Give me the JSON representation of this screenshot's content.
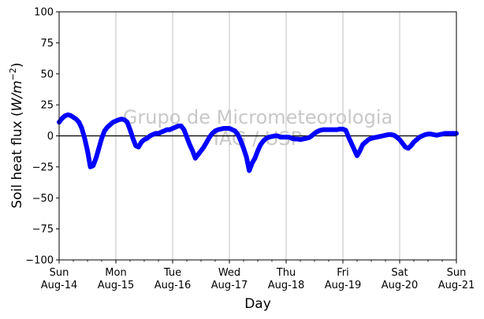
{
  "chart_data": {
    "type": "line",
    "xlabel": "Day",
    "ylabel": "Soil heat flux (W/m⁻²)",
    "ylabel_parts": [
      "Soil heat flux (",
      "W",
      "/",
      "m",
      "−2",
      ")"
    ],
    "xlim": [
      0,
      7
    ],
    "ylim": [
      -100,
      100
    ],
    "y_ticks": [
      100,
      75,
      50,
      25,
      0,
      -25,
      -50,
      -75,
      -100
    ],
    "x_ticks": [
      {
        "x": 0,
        "day": "Sun",
        "date": "Aug-14"
      },
      {
        "x": 1,
        "day": "Mon",
        "date": "Aug-15"
      },
      {
        "x": 2,
        "day": "Tue",
        "date": "Aug-16"
      },
      {
        "x": 3,
        "day": "Wed",
        "date": "Aug-17"
      },
      {
        "x": 4,
        "day": "Thu",
        "date": "Aug-18"
      },
      {
        "x": 5,
        "day": "Fri",
        "date": "Aug-19"
      },
      {
        "x": 6,
        "day": "Sat",
        "date": "Aug-20"
      },
      {
        "x": 7,
        "day": "Sun",
        "date": "Aug-21"
      }
    ],
    "grid": "vertical",
    "zero_line": true,
    "watermark": [
      "Grupo de Micrometeorologia",
      "IAG / USP"
    ],
    "series": [
      {
        "color": "#0000ff",
        "points": [
          [
            0.0,
            11
          ],
          [
            0.05,
            14
          ],
          [
            0.1,
            16
          ],
          [
            0.15,
            17
          ],
          [
            0.2,
            16.5
          ],
          [
            0.25,
            15
          ],
          [
            0.3,
            13.5
          ],
          [
            0.35,
            11
          ],
          [
            0.4,
            6
          ],
          [
            0.45,
            -2
          ],
          [
            0.5,
            -12
          ],
          [
            0.55,
            -25
          ],
          [
            0.6,
            -24
          ],
          [
            0.65,
            -18
          ],
          [
            0.7,
            -10
          ],
          [
            0.75,
            -2
          ],
          [
            0.8,
            4
          ],
          [
            0.85,
            7
          ],
          [
            0.9,
            9
          ],
          [
            0.95,
            11
          ],
          [
            1.0,
            12
          ],
          [
            1.05,
            13
          ],
          [
            1.1,
            13.5
          ],
          [
            1.15,
            13
          ],
          [
            1.2,
            11
          ],
          [
            1.25,
            5
          ],
          [
            1.3,
            -2
          ],
          [
            1.35,
            -8
          ],
          [
            1.4,
            -9
          ],
          [
            1.45,
            -5
          ],
          [
            1.5,
            -3
          ],
          [
            1.55,
            -2
          ],
          [
            1.6,
            0
          ],
          [
            1.65,
            1
          ],
          [
            1.7,
            2
          ],
          [
            1.75,
            2
          ],
          [
            1.8,
            3
          ],
          [
            1.85,
            4
          ],
          [
            1.9,
            5
          ],
          [
            1.95,
            5
          ],
          [
            2.0,
            6
          ],
          [
            2.05,
            7
          ],
          [
            2.1,
            8
          ],
          [
            2.15,
            8
          ],
          [
            2.2,
            5
          ],
          [
            2.25,
            -1
          ],
          [
            2.3,
            -7
          ],
          [
            2.35,
            -12
          ],
          [
            2.4,
            -18
          ],
          [
            2.45,
            -15
          ],
          [
            2.5,
            -12
          ],
          [
            2.55,
            -9
          ],
          [
            2.6,
            -5
          ],
          [
            2.65,
            -1
          ],
          [
            2.7,
            2
          ],
          [
            2.75,
            4
          ],
          [
            2.8,
            5
          ],
          [
            2.85,
            5.5
          ],
          [
            2.9,
            6
          ],
          [
            2.95,
            6
          ],
          [
            3.0,
            6
          ],
          [
            3.05,
            5
          ],
          [
            3.1,
            4
          ],
          [
            3.15,
            1
          ],
          [
            3.2,
            -4
          ],
          [
            3.25,
            -10
          ],
          [
            3.3,
            -17
          ],
          [
            3.35,
            -28
          ],
          [
            3.4,
            -22
          ],
          [
            3.45,
            -18
          ],
          [
            3.5,
            -12
          ],
          [
            3.55,
            -7
          ],
          [
            3.6,
            -4
          ],
          [
            3.65,
            -2
          ],
          [
            3.7,
            -1
          ],
          [
            3.75,
            -0.5
          ],
          [
            3.8,
            0
          ],
          [
            3.85,
            0
          ],
          [
            3.9,
            -1
          ],
          [
            3.95,
            -1
          ],
          [
            4.0,
            -1
          ],
          [
            4.05,
            -1
          ],
          [
            4.1,
            -2
          ],
          [
            4.15,
            -2.5
          ],
          [
            4.2,
            -2.5
          ],
          [
            4.25,
            -3
          ],
          [
            4.3,
            -2.5
          ],
          [
            4.35,
            -2
          ],
          [
            4.4,
            -1.5
          ],
          [
            4.45,
            0
          ],
          [
            4.5,
            2
          ],
          [
            4.55,
            3.5
          ],
          [
            4.6,
            4.5
          ],
          [
            4.65,
            5
          ],
          [
            4.7,
            5
          ],
          [
            4.75,
            5
          ],
          [
            4.8,
            5
          ],
          [
            4.85,
            5
          ],
          [
            4.9,
            5
          ],
          [
            4.95,
            5.5
          ],
          [
            5.0,
            5.5
          ],
          [
            5.05,
            4.5
          ],
          [
            5.1,
            -1
          ],
          [
            5.15,
            -6
          ],
          [
            5.2,
            -11
          ],
          [
            5.25,
            -16
          ],
          [
            5.3,
            -12
          ],
          [
            5.35,
            -7
          ],
          [
            5.4,
            -5
          ],
          [
            5.45,
            -3
          ],
          [
            5.5,
            -2
          ],
          [
            5.55,
            -1.5
          ],
          [
            5.6,
            -1
          ],
          [
            5.65,
            -0.5
          ],
          [
            5.7,
            0
          ],
          [
            5.75,
            0.5
          ],
          [
            5.8,
            1
          ],
          [
            5.85,
            1
          ],
          [
            5.9,
            0.5
          ],
          [
            5.95,
            -1
          ],
          [
            6.0,
            -3
          ],
          [
            6.05,
            -6
          ],
          [
            6.1,
            -9
          ],
          [
            6.15,
            -10
          ],
          [
            6.2,
            -8
          ],
          [
            6.25,
            -5
          ],
          [
            6.3,
            -3
          ],
          [
            6.35,
            -1
          ],
          [
            6.4,
            0
          ],
          [
            6.45,
            1
          ],
          [
            6.5,
            1.5
          ],
          [
            6.55,
            1.5
          ],
          [
            6.6,
            1
          ],
          [
            6.65,
            0.5
          ],
          [
            6.7,
            1
          ],
          [
            6.75,
            1.5
          ],
          [
            6.8,
            2
          ],
          [
            6.85,
            2
          ],
          [
            6.9,
            2
          ],
          [
            6.95,
            2
          ],
          [
            7.0,
            2
          ]
        ]
      }
    ]
  }
}
